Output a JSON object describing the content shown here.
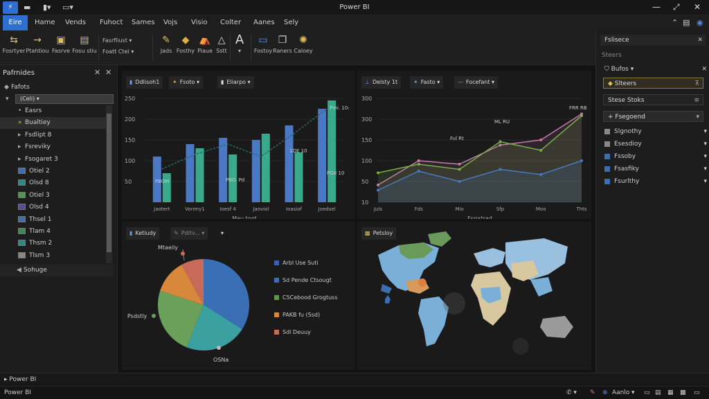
{
  "app": {
    "title": "Power BI"
  },
  "quick_access": [
    "save-icon",
    "undo-icon",
    "redo-icon"
  ],
  "menu": {
    "tabs": [
      "Eire",
      "Hame",
      "Vends",
      "Fuhoct",
      "Sames",
      "Vojs",
      "Visio",
      "Colter",
      "Aanes",
      "Sely"
    ]
  },
  "ribbon": {
    "buttons": [
      {
        "icon": "arrow-pin-icon",
        "label": "Fosrtyer"
      },
      {
        "icon": "arrow-right-icon",
        "label": "Ptahtiou"
      },
      {
        "icon": "report-icon",
        "label": "Fasrve"
      },
      {
        "icon": "page-icon",
        "label": "Fosu stiu"
      },
      {
        "icon": "pencil-icon",
        "label": "Jads"
      },
      {
        "icon": "diamond-icon",
        "label": "Fosthy"
      },
      {
        "icon": "paint-icon",
        "label": "Piaue"
      },
      {
        "icon": "triangle-icon",
        "label": "Sstt"
      },
      {
        "icon": "text-a-icon",
        "label": ""
      },
      {
        "icon": "monitor-icon",
        "label": "Fostoy"
      },
      {
        "icon": "copy-icon",
        "label": "Raners"
      },
      {
        "icon": "sparkle-icon",
        "label": "Caloey"
      }
    ],
    "small": [
      "Fasrfliust",
      "Foatt Ctel"
    ]
  },
  "left_panel": {
    "title": "Pafrnides",
    "root": "Fafots",
    "combo_value": "(Celi)",
    "items": [
      {
        "label": "Easrs",
        "swatch": ""
      },
      {
        "label": "Bualtiey",
        "swatch": "",
        "selected": true
      },
      {
        "label": "Fsdlipt 8",
        "swatch": ""
      },
      {
        "label": "Fsreviky",
        "swatch": ""
      },
      {
        "label": "Fsogaret 3",
        "swatch": ""
      },
      {
        "label": "Otiel 2",
        "swatch": "#3a6fb0"
      },
      {
        "label": "Olsd 8",
        "swatch": "#2c8a8a"
      },
      {
        "label": "Otiel 3",
        "swatch": "#4a9a4a"
      },
      {
        "label": "Olsd 4",
        "swatch": "#5a4a9a"
      },
      {
        "label": "Thsel 1",
        "swatch": "#3a6fb0"
      },
      {
        "label": "Tlam 4",
        "swatch": "#3a8a5a"
      },
      {
        "label": "Thsm 2",
        "swatch": "#2c8a8a"
      },
      {
        "label": "Tlsm 3",
        "swatch": "#888888"
      }
    ],
    "footer": "Sohuge"
  },
  "visuals": {
    "bar": {
      "chips": [
        "Ddlisoh1",
        "Fsoto",
        "Eliarpo"
      ],
      "ylabels": [
        "250",
        "200",
        "150",
        "100",
        "50"
      ],
      "xlabels": [
        "Jaotert",
        "Vonmy1",
        "Ioesf 4",
        "Jaoviol",
        "Ioasiof",
        "Joedsel"
      ],
      "xtitle": "Mau toot",
      "annotations": [
        "Pmi. 10:",
        "PBOM",
        "PBO. Pd",
        "1OE 10",
        "POd 10"
      ]
    },
    "line": {
      "chips": [
        "Delsty 1t",
        "Fasto",
        "Focefant"
      ],
      "ylabels": [
        "300",
        "300",
        "150",
        "100",
        "50",
        "10"
      ],
      "xlabels": [
        "Juls",
        "Fds",
        "Mio",
        "Sfp",
        "Moo",
        "Thts"
      ],
      "xtitle": "Fsrrstrad",
      "annotations": [
        "Ful Rt",
        "ML RU",
        "FRR RB"
      ]
    },
    "pie": {
      "chips": [
        "Ketiudy",
        "Pditv..."
      ],
      "labels": [
        "Mtaeily",
        "Psdstly",
        "OSNa"
      ],
      "legend": [
        {
          "label": "Arbl Use Suti",
          "color": "#3b5fb5"
        },
        {
          "label": "Sd Pende Ctsougt",
          "color": "#3b6fb5"
        },
        {
          "label": "C5Cebood Grogtuss",
          "color": "#5a9a4a"
        },
        {
          "label": "PAKB fu (Ssd)",
          "color": "#d8883a"
        },
        {
          "label": "Sdl Deuuy",
          "color": "#c86a5a"
        }
      ]
    },
    "map": {
      "chips": [
        "Petsloy"
      ]
    }
  },
  "right_panel": {
    "search": "Fslisece",
    "section": "Steers",
    "filter_label": "Bufos",
    "box1": "Slteers",
    "box2": "Stese Stoks",
    "group": "Fsegoend",
    "items": [
      {
        "label": "Slgnothy",
        "color": "#888888"
      },
      {
        "label": "Esesdioy",
        "color": "#888888"
      },
      {
        "label": "Fssoby",
        "color": "#3a6fb0"
      },
      {
        "label": "Fsasfiky",
        "color": "#3a6fb0"
      },
      {
        "label": "Fsurlthy",
        "color": "#3a6fb0"
      }
    ]
  },
  "page_tab": "Power BI",
  "status": {
    "left": "Power BI",
    "right_label": "Aanlo"
  },
  "colors": {
    "accent": "#2f6fd1",
    "bar_blue": "#4a78c2",
    "bar_teal": "#3aa88a",
    "line_pink": "#c87ab0",
    "line_green": "#7ab04a",
    "line_blue": "#4a7ac2"
  },
  "chart_data": [
    {
      "type": "bar",
      "categories": [
        "Jaotert",
        "Vonmy1",
        "Ioesf 4",
        "Jaoviol",
        "Ioasiof",
        "Joedsel"
      ],
      "series": [
        {
          "values": [
            110,
            140,
            155,
            150,
            185,
            225
          ]
        },
        {
          "values": [
            70,
            130,
            115,
            165,
            120,
            245
          ]
        }
      ],
      "line_values": [
        80,
        115,
        140,
        110,
        165,
        225
      ],
      "ylim": [
        0,
        250
      ],
      "xlabel": "Mau toot"
    },
    {
      "type": "line",
      "categories": [
        "Juls",
        "Fds",
        "Mio",
        "Sfp",
        "Moo",
        "Thts"
      ],
      "series": [
        {
          "values": [
            50,
            120,
            110,
            165,
            180,
            255
          ]
        },
        {
          "values": [
            85,
            110,
            95,
            175,
            150,
            250
          ]
        },
        {
          "values": [
            35,
            90,
            60,
            95,
            80,
            120
          ]
        }
      ],
      "ylim": [
        0,
        300
      ]
    },
    {
      "type": "pie",
      "categories": [
        "Arbl Use Suti",
        "Sd Pende Ctsougt",
        "C5Cebood Grogtuss",
        "PAKB fu (Ssd)",
        "Sdl Deuuy"
      ],
      "values": [
        34,
        22,
        24,
        12,
        8
      ]
    }
  ]
}
